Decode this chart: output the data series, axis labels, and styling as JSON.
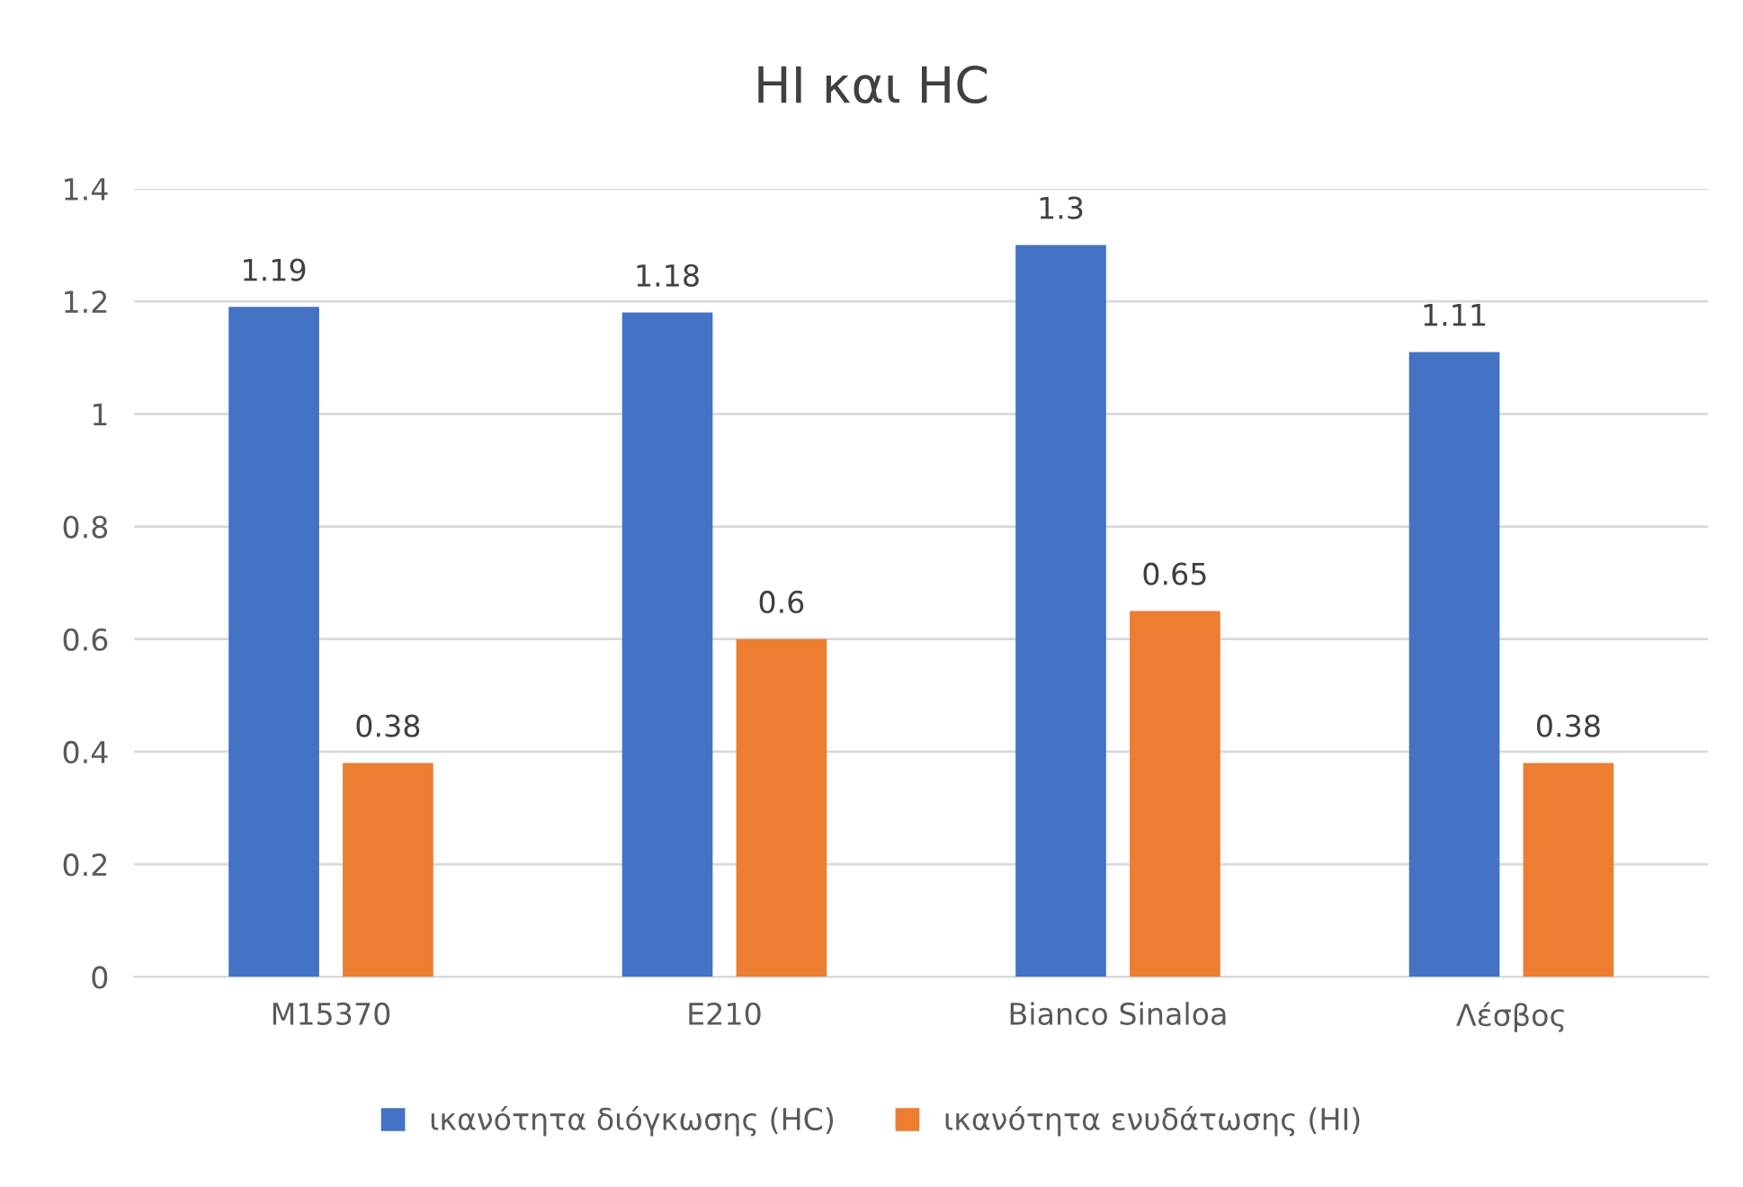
{
  "chart_data": {
    "type": "bar",
    "title": "HI και HC",
    "categories": [
      "M15370",
      "E210",
      "Bianco Sinaloa",
      "Λέσβος"
    ],
    "series": [
      {
        "name": "ικανότητα διόγκωσης (HC)",
        "color": "#4472c4",
        "values": [
          1.19,
          1.18,
          1.3,
          1.11
        ]
      },
      {
        "name": "ικανότητα ενυδάτωσης (HI)",
        "color": "#ed7d31",
        "values": [
          0.38,
          0.6,
          0.65,
          0.38
        ]
      }
    ],
    "ylim": [
      0,
      1.4
    ],
    "yticks": [
      0,
      0.2,
      0.4,
      0.6,
      0.8,
      1,
      1.2,
      1.4
    ],
    "grid": "y",
    "legend": "bottom",
    "data_labels": true
  }
}
